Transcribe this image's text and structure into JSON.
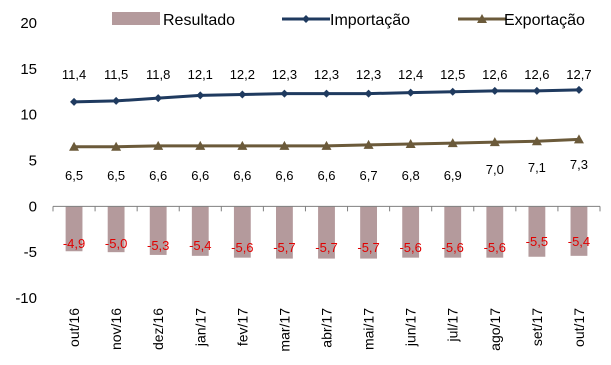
{
  "chart_data": {
    "type": "bar+line",
    "categories": [
      "out/16",
      "nov/16",
      "dez/16",
      "jan/17",
      "fev/17",
      "mar/17",
      "abr/17",
      "mai/17",
      "jun/17",
      "jul/17",
      "ago/17",
      "set/17",
      "out/17"
    ],
    "series": [
      {
        "name": "Resultado",
        "kind": "bar",
        "color": "#b49a9c",
        "values": [
          -4.9,
          -5.0,
          -5.3,
          -5.4,
          -5.6,
          -5.7,
          -5.7,
          -5.7,
          -5.6,
          -5.6,
          -5.6,
          -5.5,
          -5.4
        ],
        "labels": [
          "-4,9",
          "-5,0",
          "-5,3",
          "-5,4",
          "-5,6",
          "-5,7",
          "-5,7",
          "-5,7",
          "-5,6",
          "-5,6",
          "-5,6",
          "-5,5",
          "-5,4"
        ]
      },
      {
        "name": "Importação",
        "kind": "line",
        "marker": "diamond",
        "color": "#1f3a5f",
        "values": [
          11.4,
          11.5,
          11.8,
          12.1,
          12.2,
          12.3,
          12.3,
          12.3,
          12.4,
          12.5,
          12.6,
          12.6,
          12.7
        ],
        "labels": [
          "11,4",
          "11,5",
          "11,8",
          "12,1",
          "12,2",
          "12,3",
          "12,3",
          "12,3",
          "12,4",
          "12,5",
          "12,6",
          "12,6",
          "12,7"
        ]
      },
      {
        "name": "Exportação",
        "kind": "line",
        "marker": "triangle",
        "color": "#6b5a3a",
        "values": [
          6.5,
          6.5,
          6.6,
          6.6,
          6.6,
          6.6,
          6.6,
          6.7,
          6.8,
          6.9,
          7.0,
          7.1,
          7.3
        ],
        "labels": [
          "6,5",
          "6,5",
          "6,6",
          "6,6",
          "6,6",
          "6,6",
          "6,6",
          "6,7",
          "6,8",
          "6,9",
          "7,0",
          "7,1",
          "7,3"
        ]
      }
    ],
    "ylim": [
      -10,
      20
    ],
    "yticks": [
      20,
      15,
      10,
      5,
      0,
      -5,
      -10
    ],
    "grid": false,
    "legend": "top"
  }
}
